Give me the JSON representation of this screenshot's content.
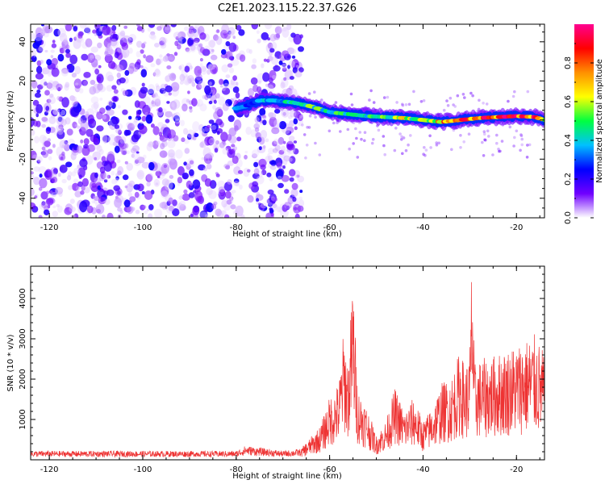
{
  "figure": {
    "title": "C2E1.2023.115.22.37.G26"
  },
  "chart_data": [
    {
      "type": "heatmap",
      "xlabel": "Height of straight line (km)",
      "ylabel": "Frequency (Hz)",
      "xlim": [
        -124,
        -14
      ],
      "ylim": [
        -50,
        49
      ],
      "xticks": [
        -120,
        -100,
        -80,
        -60,
        -40,
        -20
      ],
      "yticks": [
        -40,
        -20,
        0,
        20,
        40
      ],
      "colorbar": {
        "label": "Normalized spectral amplitude",
        "range": [
          0,
          1
        ],
        "ticks": [
          0.0,
          0.2,
          0.4,
          0.6,
          0.8
        ],
        "colormap": [
          "#ffffff",
          "#7000ff",
          "#0000ff",
          "#00c0ff",
          "#00ff40",
          "#ffff00",
          "#ff9000",
          "#ff0000",
          "#ff0090"
        ]
      },
      "noise_region": {
        "x_range": [
          -124,
          -66
        ],
        "y_range": [
          -50,
          49
        ]
      },
      "ridge": {
        "x": [
          -80,
          -78,
          -75,
          -72,
          -68,
          -64,
          -60,
          -56,
          -52,
          -48,
          -44,
          -40,
          -36,
          -32,
          -28,
          -24,
          -20,
          -16,
          -14
        ],
        "y": [
          6,
          7,
          10,
          10,
          9,
          7,
          4,
          3,
          2,
          1.5,
          1,
          0,
          -1,
          0,
          1,
          1.5,
          2,
          1.5,
          0
        ],
        "amplitude": [
          0.35,
          0.3,
          0.35,
          0.4,
          0.45,
          0.5,
          0.5,
          0.5,
          0.5,
          0.55,
          0.6,
          0.6,
          0.75,
          0.8,
          0.85,
          0.85,
          0.85,
          0.8,
          0.7
        ]
      }
    },
    {
      "type": "line",
      "xlabel": "Height of straight line (km)",
      "ylabel": "SNR (10 * v/v)",
      "xlim": [
        -124,
        -14
      ],
      "ylim": [
        0,
        4800
      ],
      "xticks": [
        -120,
        -100,
        -80,
        -60,
        -40,
        -20
      ],
      "yticks": [
        1000,
        2000,
        3000,
        4000
      ],
      "color": "#ee3333",
      "series_envelope": {
        "x": [
          -124,
          -80,
          -78,
          -70,
          -66,
          -62,
          -60,
          -58,
          -57,
          -56,
          -55,
          -54,
          -52,
          -50,
          -48,
          -46,
          -44,
          -42,
          -40,
          -38,
          -36,
          -34,
          -32,
          -31,
          -30,
          -29.5,
          -29,
          -27,
          -24,
          -22,
          -20,
          -18,
          -16,
          -14
        ],
        "y": [
          200,
          200,
          320,
          200,
          250,
          700,
          1300,
          1600,
          2700,
          2000,
          3900,
          1500,
          1100,
          500,
          800,
          1500,
          1000,
          1300,
          800,
          1100,
          1600,
          1700,
          2300,
          1900,
          2200,
          4700,
          2000,
          2100,
          2200,
          2300,
          2400,
          2500,
          2600,
          2200
        ]
      }
    }
  ]
}
